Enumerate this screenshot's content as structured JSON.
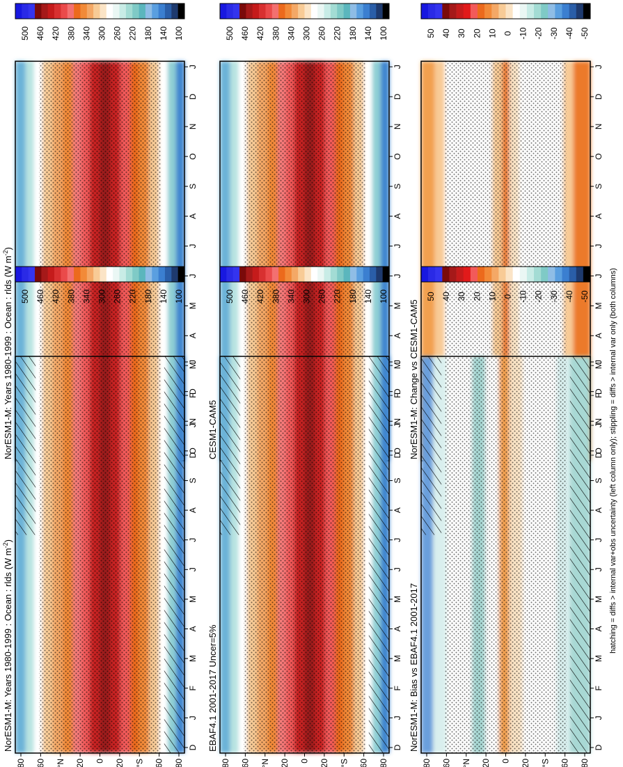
{
  "figure": {
    "footnote": "hatching = diffs > internal var+obs uncertainty (left column only); stippling = diffs > internal var only (both columns)"
  },
  "chart_data": [
    {
      "type": "heatmap",
      "title": "NorESM1-M: Years 1980-1999 : Ocean : rlds (W m",
      "title_superscript": "-2",
      "title_close": ")",
      "xlabel": "",
      "ylabel": "",
      "x_ticklabels": [
        "D",
        "J",
        "F",
        "M",
        "A",
        "M",
        "J",
        "J",
        "A",
        "S",
        "O",
        "N",
        "D",
        "J"
      ],
      "y_ticklabels": [
        "80",
        "60",
        "°N",
        "20",
        "0",
        "20",
        "°S",
        "60",
        "80"
      ],
      "colorbar": {
        "labels": [
          "500",
          "460",
          "420",
          "380",
          "340",
          "300",
          "260",
          "220",
          "180",
          "140",
          "100"
        ],
        "kind": "absolute"
      },
      "field": {
        "kind": "absolute",
        "hatching": true,
        "stippling": true
      }
    },
    {
      "type": "heatmap",
      "title": "NorESM1-M: Years 1980-1999 : Ocean : rlds (W m",
      "title_superscript": "-2",
      "title_close": ")",
      "xlabel": "",
      "ylabel": "",
      "x_ticklabels": [
        "D",
        "J",
        "F",
        "M",
        "A",
        "M",
        "J",
        "J",
        "A",
        "S",
        "O",
        "N",
        "D",
        "J"
      ],
      "y_ticklabels": [
        "80",
        "60",
        "°N",
        "20",
        "0",
        "20",
        "°S",
        "60",
        "80"
      ],
      "colorbar": {
        "labels": [
          "500",
          "460",
          "420",
          "380",
          "340",
          "300",
          "260",
          "220",
          "180",
          "140",
          "100"
        ],
        "kind": "absolute"
      },
      "field": {
        "kind": "absolute",
        "hatching": false,
        "stippling": true
      }
    },
    {
      "type": "heatmap",
      "title": "EBAF4.1 2001-2017 Uncer=5%",
      "xlabel": "",
      "ylabel": "",
      "x_ticklabels": [
        "D",
        "J",
        "F",
        "M",
        "A",
        "M",
        "J",
        "J",
        "A",
        "S",
        "O",
        "N",
        "D",
        "J"
      ],
      "y_ticklabels": [
        "80",
        "60",
        "°N",
        "20",
        "0",
        "20",
        "°S",
        "60",
        "80"
      ],
      "colorbar": {
        "labels": [
          "500",
          "460",
          "420",
          "380",
          "340",
          "300",
          "260",
          "220",
          "180",
          "140",
          "100"
        ],
        "kind": "absolute"
      },
      "field": {
        "kind": "absolute",
        "hatching": true,
        "stippling": true
      }
    },
    {
      "type": "heatmap",
      "title": "CESM1-CAM5",
      "xlabel": "",
      "ylabel": "",
      "x_ticklabels": [
        "D",
        "J",
        "F",
        "M",
        "A",
        "M",
        "J",
        "J",
        "A",
        "S",
        "O",
        "N",
        "D",
        "J"
      ],
      "y_ticklabels": [
        "80",
        "60",
        "°N",
        "20",
        "0",
        "20",
        "°S",
        "60",
        "80"
      ],
      "colorbar": {
        "labels": [
          "500",
          "460",
          "420",
          "380",
          "340",
          "300",
          "260",
          "220",
          "180",
          "140",
          "100"
        ],
        "kind": "absolute"
      },
      "field": {
        "kind": "absolute",
        "hatching": false,
        "stippling": true
      }
    },
    {
      "type": "heatmap",
      "title": "NorESM1-M: Bias vs EBAF4.1 2001-2017",
      "xlabel": "",
      "ylabel": "",
      "x_ticklabels": [
        "D",
        "J",
        "F",
        "M",
        "A",
        "M",
        "J",
        "J",
        "A",
        "S",
        "O",
        "N",
        "D",
        "J"
      ],
      "y_ticklabels": [
        "80",
        "60",
        "°N",
        "20",
        "0",
        "20",
        "°S",
        "60",
        "80"
      ],
      "colorbar": {
        "labels": [
          "50",
          "40",
          "30",
          "20",
          "10",
          "0",
          "-10",
          "-20",
          "-30",
          "-40",
          "-50"
        ],
        "kind": "difference"
      },
      "field": {
        "kind": "bias",
        "hatching": true,
        "stippling": true
      }
    },
    {
      "type": "heatmap",
      "title": "NorESM1-M: Change vs CESM1-CAM5",
      "xlabel": "",
      "ylabel": "",
      "x_ticklabels": [
        "D",
        "J",
        "F",
        "M",
        "A",
        "M",
        "J",
        "J",
        "A",
        "S",
        "O",
        "N",
        "D",
        "J"
      ],
      "y_ticklabels": [
        "80",
        "60",
        "°N",
        "20",
        "0",
        "20",
        "°S",
        "60",
        "80"
      ],
      "colorbar": {
        "labels": [
          "50",
          "40",
          "30",
          "20",
          "10",
          "0",
          "-10",
          "-20",
          "-30",
          "-40",
          "-50"
        ],
        "kind": "difference"
      },
      "field": {
        "kind": "change",
        "hatching": false,
        "stippling": true
      }
    }
  ],
  "palettes": {
    "absolute": [
      "#1818e0",
      "#2a2ae6",
      "#3434ee",
      "#7a0a0a",
      "#a51919",
      "#c51b1b",
      "#d83030",
      "#ea4a4a",
      "#f37070",
      "#ec6a1c",
      "#f28a38",
      "#f4a866",
      "#f8cb96",
      "#fbe4c6",
      "#ffffff",
      "#eaf7f4",
      "#c8ece6",
      "#a3dcd4",
      "#7fcac6",
      "#5bb6bd",
      "#8fbde6",
      "#5a9fe0",
      "#3b7fd0",
      "#2a5ea8",
      "#1e3a6e",
      "#000000"
    ],
    "difference": [
      "#1818e0",
      "#2a2ae6",
      "#3434ee",
      "#7a0a0a",
      "#a51919",
      "#c51b1b",
      "#e11a1a",
      "#f25a5a",
      "#ec6a1c",
      "#f28a38",
      "#f4a866",
      "#f8cb96",
      "#fbe4c6",
      "#ffffff",
      "#eaf7f4",
      "#c8ece6",
      "#a3dcd4",
      "#7fcac6",
      "#8fbde6",
      "#5a9fe0",
      "#3b7fd0",
      "#2a5ea8",
      "#1e3a6e",
      "#000000"
    ],
    "field_absolute": [
      "#9a1a1a",
      "#c82020",
      "#e03a3a",
      "#f25a5a",
      "#f47a7a",
      "#ec6a1c",
      "#f28a38",
      "#f4a866",
      "#f8cb96",
      "#fbe4c6",
      "#ffffff",
      "#dff3f2",
      "#b8e3e1",
      "#8fcfd4",
      "#6cb3d8",
      "#3f86cf",
      "#2a5ea8"
    ],
    "field_bias": [
      "#2a5ea8",
      "#6a9fdc",
      "#a8d8d4",
      "#d9efee",
      "#ffffff",
      "#fbe4c6",
      "#f8cb96",
      "#f2a050",
      "#ec7a2a"
    ],
    "field_change": [
      "#ffffff",
      "#fbe4c6",
      "#f8cb96",
      "#f2a050",
      "#ec7a2a",
      "#e34a2a"
    ]
  }
}
